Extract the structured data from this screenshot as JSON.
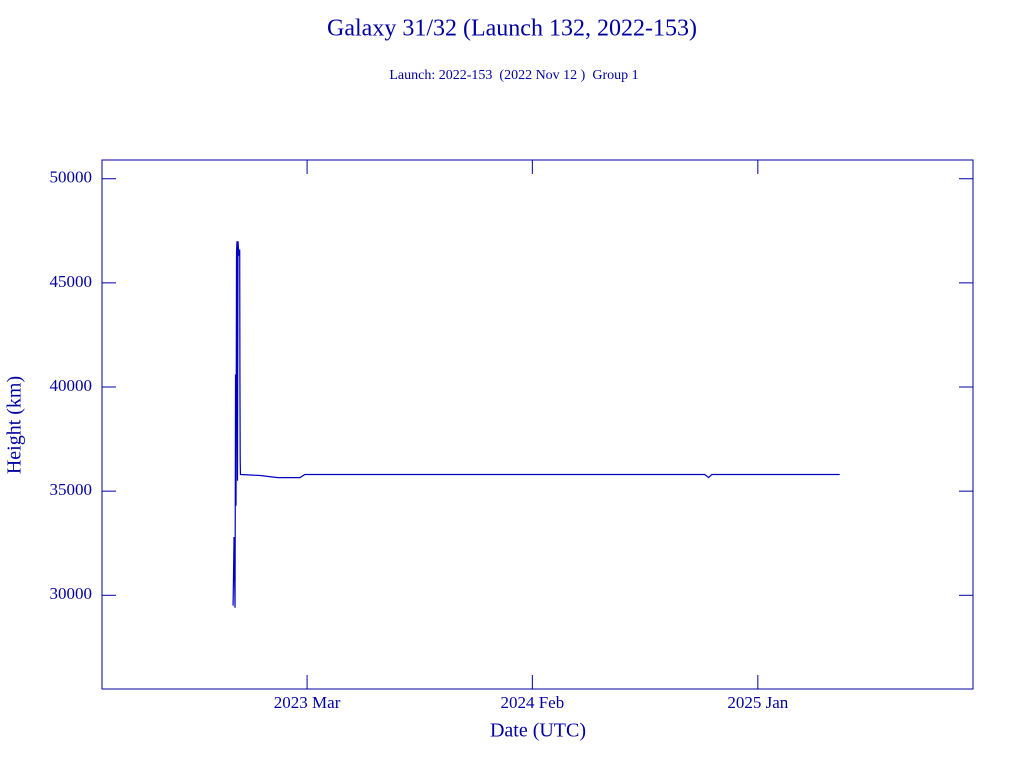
{
  "chart_data": {
    "type": "line",
    "title": "Galaxy 31/32 (Launch 132, 2022-153)",
    "subtitle": "Launch: 2022-153  (2022 Nov 12 )  Group 1",
    "xlabel": "Date (UTC)",
    "ylabel": "Height (km)",
    "xlim": [
      2022.333,
      2025.875
    ],
    "ylim": [
      25500,
      50900
    ],
    "xticks": [
      {
        "value": 2023.167,
        "label": "2023 Mar"
      },
      {
        "value": 2024.083,
        "label": "2024 Feb"
      },
      {
        "value": 2025.0,
        "label": "2025 Jan"
      }
    ],
    "yticks": [
      30000,
      35000,
      40000,
      45000,
      50000
    ],
    "grid": false,
    "series": [
      {
        "name": "Height",
        "color": "#0000c0",
        "x": [
          2022.866,
          2022.87,
          2022.874,
          2022.876,
          2022.878,
          2022.88,
          2022.882,
          2022.884,
          2022.886,
          2022.89,
          2022.893,
          2022.894,
          2022.895,
          2022.896,
          2022.898,
          2022.976,
          2023.049,
          2023.138,
          2023.158,
          2024.784,
          2024.8,
          2024.813,
          2025.333
        ],
        "values": [
          29500,
          32800,
          29400,
          40600,
          34300,
          46500,
          47000,
          35500,
          47000,
          46300,
          46600,
          40200,
          36500,
          35800,
          35800,
          35750,
          35650,
          35650,
          35800,
          35800,
          35650,
          35800,
          35800
        ]
      }
    ]
  }
}
